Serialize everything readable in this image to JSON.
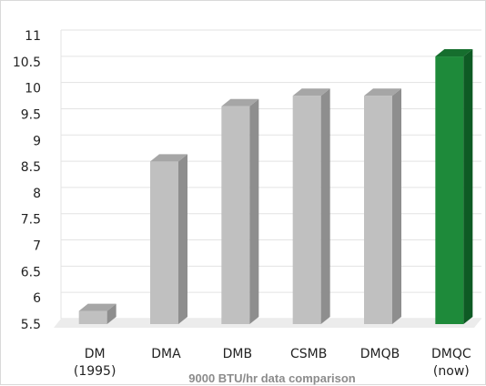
{
  "chart_data": {
    "type": "bar",
    "title": "",
    "caption": "9000 BTU/hr data comparison",
    "xlabel": "",
    "ylabel": "",
    "categories": [
      [
        "DM",
        "(1995)"
      ],
      [
        "DMA"
      ],
      [
        "DMB"
      ],
      [
        "CSMB"
      ],
      [
        "DMQB"
      ],
      [
        "DMQC",
        "(now)"
      ]
    ],
    "values": [
      5.75,
      8.6,
      9.65,
      9.85,
      9.85,
      10.6
    ],
    "ylim": [
      5.5,
      11
    ],
    "yticks": [
      "5.5",
      "6",
      "6.5",
      "7",
      "7.5",
      "8",
      "8.5",
      "9",
      "9.5",
      "10",
      "10.5",
      "11"
    ],
    "grid": true,
    "legend": "none",
    "colors": {
      "bar_front": "#c0c0c0",
      "bar_side": "#8e8e8e",
      "bar_top": "#a6a6a6",
      "highlight_front": "#1e8a3a",
      "highlight_side": "#0e5a24",
      "highlight_top": "#166e2e",
      "grid": "#e3e3e3",
      "floor": "#ececec"
    },
    "highlight_index": 5
  }
}
